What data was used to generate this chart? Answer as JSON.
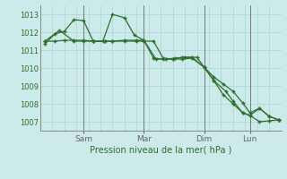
{
  "title": "Pression niveau de la mer( hPa )",
  "bg_color": "#cceaea",
  "grid_color": "#aad4d4",
  "line_color": "#2d6e2d",
  "ylim": [
    1006.5,
    1013.5
  ],
  "yticks": [
    1007,
    1008,
    1009,
    1010,
    1011,
    1012,
    1013
  ],
  "xtick_labels": [
    "Sam",
    "Mar",
    "Dim",
    "Lun"
  ],
  "xtick_positions": [
    0.18,
    0.43,
    0.68,
    0.87
  ],
  "vline_positions": [
    0.18,
    0.43,
    0.68,
    0.87
  ],
  "line1_x": [
    0.02,
    0.06,
    0.1,
    0.14,
    0.18,
    0.22,
    0.26,
    0.3,
    0.35,
    0.39,
    0.43,
    0.47,
    0.51,
    0.55,
    0.59,
    0.63,
    0.68,
    0.72,
    0.76,
    0.8,
    0.84,
    0.87,
    0.91,
    0.95,
    0.99
  ],
  "line1_y": [
    1011.35,
    1011.9,
    1012.05,
    1012.7,
    1012.65,
    1011.5,
    1011.5,
    1013.0,
    1012.8,
    1011.85,
    1011.55,
    1010.55,
    1010.5,
    1010.5,
    1010.6,
    1010.6,
    1010.05,
    1009.5,
    1009.1,
    1008.7,
    1008.05,
    1007.5,
    1007.75,
    1007.3,
    1007.1
  ],
  "line2_x": [
    0.02,
    0.08,
    0.14,
    0.18,
    0.22,
    0.27,
    0.3,
    0.35,
    0.4,
    0.43,
    0.48,
    0.52,
    0.56,
    0.6,
    0.65,
    0.68,
    0.72,
    0.76,
    0.8,
    0.84,
    0.87,
    0.91,
    0.95,
    0.99
  ],
  "line2_y": [
    1011.5,
    1012.1,
    1011.5,
    1011.5,
    1011.5,
    1011.5,
    1011.5,
    1011.55,
    1011.55,
    1011.55,
    1010.5,
    1010.5,
    1010.55,
    1010.6,
    1010.6,
    1010.05,
    1009.3,
    1008.5,
    1008.0,
    1007.5,
    1007.35,
    1007.0,
    1007.05,
    1007.1
  ],
  "line3_x": [
    0.02,
    0.06,
    0.1,
    0.14,
    0.18,
    0.22,
    0.27,
    0.3,
    0.35,
    0.4,
    0.43,
    0.47,
    0.51,
    0.55,
    0.59,
    0.63,
    0.68,
    0.72,
    0.77,
    0.8,
    0.84,
    0.87,
    0.91,
    0.95,
    0.99
  ],
  "line3_y": [
    1011.5,
    1011.5,
    1011.55,
    1011.55,
    1011.55,
    1011.5,
    1011.5,
    1011.5,
    1011.5,
    1011.5,
    1011.5,
    1011.5,
    1010.55,
    1010.5,
    1010.5,
    1010.55,
    1010.05,
    1009.3,
    1008.7,
    1008.15,
    1007.5,
    1007.35,
    1007.75,
    1007.3,
    1007.1
  ]
}
